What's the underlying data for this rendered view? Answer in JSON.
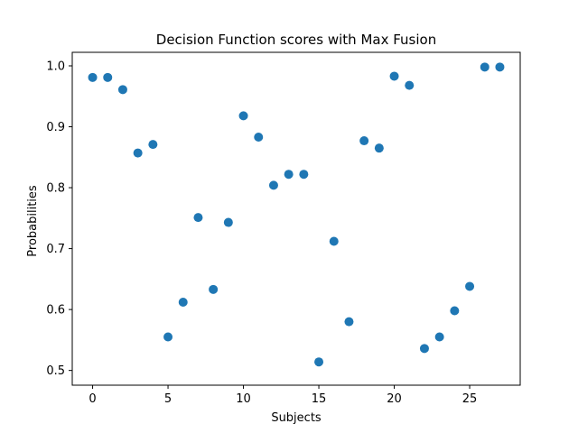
{
  "chart_data": {
    "type": "scatter",
    "title": "Decision Function scores with Max Fusion",
    "xlabel": "Subjects",
    "ylabel": "Probabilities",
    "x": [
      0,
      1,
      2,
      3,
      4,
      5,
      6,
      7,
      8,
      9,
      10,
      11,
      12,
      13,
      14,
      15,
      16,
      17,
      18,
      19,
      20,
      21,
      22,
      23,
      24,
      25,
      26,
      27
    ],
    "y": [
      0.981,
      0.981,
      0.961,
      0.857,
      0.871,
      0.555,
      0.612,
      0.751,
      0.633,
      0.743,
      0.918,
      0.883,
      0.804,
      0.822,
      0.822,
      0.514,
      0.712,
      0.58,
      0.877,
      0.865,
      0.983,
      0.968,
      0.536,
      0.555,
      0.598,
      0.638,
      0.998,
      0.998
    ],
    "xlim": [
      -1.35,
      28.35
    ],
    "ylim": [
      0.4758,
      1.0222
    ],
    "xticks": [
      0,
      5,
      10,
      15,
      20,
      25
    ],
    "yticks": [
      0.5,
      0.6,
      0.7,
      0.8,
      0.9,
      1.0
    ],
    "xtick_labels": [
      "0",
      "5",
      "10",
      "15",
      "20",
      "25"
    ],
    "ytick_labels": [
      "0.5",
      "0.6",
      "0.7",
      "0.8",
      "0.9",
      "1.0"
    ],
    "grid": false,
    "marker_color": "#1f77b4"
  }
}
